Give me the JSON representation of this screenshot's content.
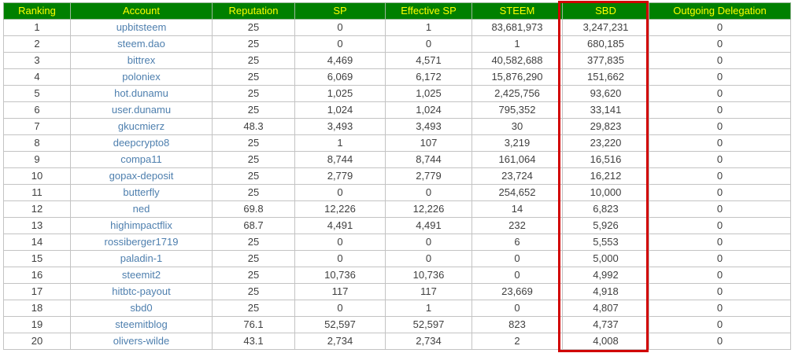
{
  "theme": {
    "header_bg": "#008000",
    "header_text": "#ffff00",
    "link_color": "#4e7fae",
    "grid_color": "#c3c3c3",
    "highlight_color": "#d10000"
  },
  "highlight": {
    "column": "SBD"
  },
  "table": {
    "columns": [
      "Ranking",
      "Account",
      "Reputation",
      "SP",
      "Effective SP",
      "STEEM",
      "SBD",
      "Outgoing Delegation"
    ],
    "rows": [
      {
        "ranking": "1",
        "account": "upbitsteem",
        "reputation": "25",
        "sp": "0",
        "effective_sp": "1",
        "steem": "83,681,973",
        "sbd": "3,247,231",
        "outgoing_delegation": "0"
      },
      {
        "ranking": "2",
        "account": "steem.dao",
        "reputation": "25",
        "sp": "0",
        "effective_sp": "0",
        "steem": "1",
        "sbd": "680,185",
        "outgoing_delegation": "0"
      },
      {
        "ranking": "3",
        "account": "bittrex",
        "reputation": "25",
        "sp": "4,469",
        "effective_sp": "4,571",
        "steem": "40,582,688",
        "sbd": "377,835",
        "outgoing_delegation": "0"
      },
      {
        "ranking": "4",
        "account": "poloniex",
        "reputation": "25",
        "sp": "6,069",
        "effective_sp": "6,172",
        "steem": "15,876,290",
        "sbd": "151,662",
        "outgoing_delegation": "0"
      },
      {
        "ranking": "5",
        "account": "hot.dunamu",
        "reputation": "25",
        "sp": "1,025",
        "effective_sp": "1,025",
        "steem": "2,425,756",
        "sbd": "93,620",
        "outgoing_delegation": "0"
      },
      {
        "ranking": "6",
        "account": "user.dunamu",
        "reputation": "25",
        "sp": "1,024",
        "effective_sp": "1,024",
        "steem": "795,352",
        "sbd": "33,141",
        "outgoing_delegation": "0"
      },
      {
        "ranking": "7",
        "account": "gkucmierz",
        "reputation": "48.3",
        "sp": "3,493",
        "effective_sp": "3,493",
        "steem": "30",
        "sbd": "29,823",
        "outgoing_delegation": "0"
      },
      {
        "ranking": "8",
        "account": "deepcrypto8",
        "reputation": "25",
        "sp": "1",
        "effective_sp": "107",
        "steem": "3,219",
        "sbd": "23,220",
        "outgoing_delegation": "0"
      },
      {
        "ranking": "9",
        "account": "compa11",
        "reputation": "25",
        "sp": "8,744",
        "effective_sp": "8,744",
        "steem": "161,064",
        "sbd": "16,516",
        "outgoing_delegation": "0"
      },
      {
        "ranking": "10",
        "account": "gopax-deposit",
        "reputation": "25",
        "sp": "2,779",
        "effective_sp": "2,779",
        "steem": "23,724",
        "sbd": "16,212",
        "outgoing_delegation": "0"
      },
      {
        "ranking": "11",
        "account": "butterfly",
        "reputation": "25",
        "sp": "0",
        "effective_sp": "0",
        "steem": "254,652",
        "sbd": "10,000",
        "outgoing_delegation": "0"
      },
      {
        "ranking": "12",
        "account": "ned",
        "reputation": "69.8",
        "sp": "12,226",
        "effective_sp": "12,226",
        "steem": "14",
        "sbd": "6,823",
        "outgoing_delegation": "0"
      },
      {
        "ranking": "13",
        "account": "highimpactflix",
        "reputation": "68.7",
        "sp": "4,491",
        "effective_sp": "4,491",
        "steem": "232",
        "sbd": "5,926",
        "outgoing_delegation": "0"
      },
      {
        "ranking": "14",
        "account": "rossiberger1719",
        "reputation": "25",
        "sp": "0",
        "effective_sp": "0",
        "steem": "6",
        "sbd": "5,553",
        "outgoing_delegation": "0"
      },
      {
        "ranking": "15",
        "account": "paladin-1",
        "reputation": "25",
        "sp": "0",
        "effective_sp": "0",
        "steem": "0",
        "sbd": "5,000",
        "outgoing_delegation": "0"
      },
      {
        "ranking": "16",
        "account": "steemit2",
        "reputation": "25",
        "sp": "10,736",
        "effective_sp": "10,736",
        "steem": "0",
        "sbd": "4,992",
        "outgoing_delegation": "0"
      },
      {
        "ranking": "17",
        "account": "hitbtc-payout",
        "reputation": "25",
        "sp": "117",
        "effective_sp": "117",
        "steem": "23,669",
        "sbd": "4,918",
        "outgoing_delegation": "0"
      },
      {
        "ranking": "18",
        "account": "sbd0",
        "reputation": "25",
        "sp": "0",
        "effective_sp": "1",
        "steem": "0",
        "sbd": "4,807",
        "outgoing_delegation": "0"
      },
      {
        "ranking": "19",
        "account": "steemitblog",
        "reputation": "76.1",
        "sp": "52,597",
        "effective_sp": "52,597",
        "steem": "823",
        "sbd": "4,737",
        "outgoing_delegation": "0"
      },
      {
        "ranking": "20",
        "account": "olivers-wilde",
        "reputation": "43.1",
        "sp": "2,734",
        "effective_sp": "2,734",
        "steem": "2",
        "sbd": "4,008",
        "outgoing_delegation": "0"
      }
    ]
  }
}
